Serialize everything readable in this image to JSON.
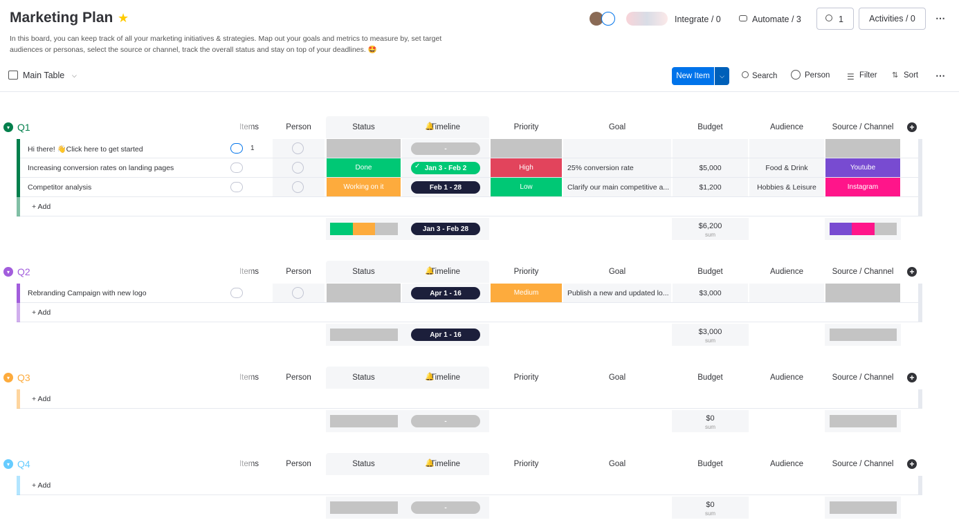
{
  "header": {
    "title": "Marketing Plan",
    "description": "In this board, you can keep track of all your marketing initiatives & strategies. Map out your goals and metrics to measure by, set target audiences or personas, select the source or channel, track the overall status and stay on top of your deadlines. 🤩",
    "integrate": "Integrate / 0",
    "automate": "Automate / 3",
    "members": "1",
    "activities": "Activities / 0"
  },
  "toolbar": {
    "view": "Main Table",
    "new_item": "New Item",
    "search": "Search",
    "person": "Person",
    "filter": "Filter",
    "sort": "Sort"
  },
  "columns": [
    "Items",
    "Person",
    "Status",
    "Timeline",
    "Priority",
    "Goal",
    "Budget",
    "Audience",
    "Source / Channel"
  ],
  "groups": [
    {
      "name": "Q1",
      "color": "#037f4c",
      "add": "+ Add",
      "items": [
        {
          "name": "Hi there! 👋Click here to get started",
          "updates": "1",
          "timeline": {
            "label": "-",
            "color": "#c4c4c4"
          }
        },
        {
          "name": "Increasing conversion rates on landing pages",
          "status": {
            "label": "Done",
            "color": "#00c875"
          },
          "timeline": {
            "label": "Jan 3 - Feb 2",
            "color": "#00c875",
            "done": true
          },
          "priority": {
            "label": "High",
            "color": "#e2445c"
          },
          "goal": "25% conversion rate",
          "budget": "$5,000",
          "audience": "Food & Drink",
          "source": {
            "label": "Youtube",
            "color": "#784bd1"
          }
        },
        {
          "name": "Competitor analysis",
          "status": {
            "label": "Working on it",
            "color": "#fdab3d"
          },
          "timeline": {
            "label": "Feb 1 - 28",
            "color": "#1c1f3b"
          },
          "priority": {
            "label": "Low",
            "color": "#00c875"
          },
          "goal": "Clarify our main competitive a...",
          "budget": "$1,200",
          "audience": "Hobbies & Leisure",
          "source": {
            "label": "Instagram",
            "color": "#ff158a"
          }
        }
      ],
      "summary": {
        "timeline": {
          "label": "Jan 3 - Feb 28",
          "color": "#1c1f3b"
        },
        "budget": "$6,200",
        "note": "sum"
      }
    },
    {
      "name": "Q2",
      "color": "#a25ddc",
      "add": "+ Add",
      "items": [
        {
          "name": "Rebranding Campaign with new logo",
          "timeline": {
            "label": "Apr 1 - 16",
            "color": "#1c1f3b"
          },
          "priority": {
            "label": "Medium",
            "color": "#fdab3d"
          },
          "goal": "Publish a new and updated lo...",
          "budget": "$3,000"
        }
      ],
      "summary": {
        "timeline": {
          "label": "Apr 1 - 16",
          "color": "#1c1f3b"
        },
        "budget": "$3,000",
        "note": "sum"
      }
    },
    {
      "name": "Q3",
      "color": "#fdab3d",
      "add": "+ Add",
      "items": [],
      "summary": {
        "timeline": {
          "label": "-",
          "color": "#c4c4c4"
        },
        "budget": "$0",
        "note": "sum"
      }
    },
    {
      "name": "Q4",
      "color": "#66ccff",
      "add": "+ Add",
      "items": [],
      "summary": {
        "timeline": {
          "label": "-",
          "color": "#c4c4c4"
        },
        "budget": "$0",
        "note": "sum"
      }
    }
  ]
}
